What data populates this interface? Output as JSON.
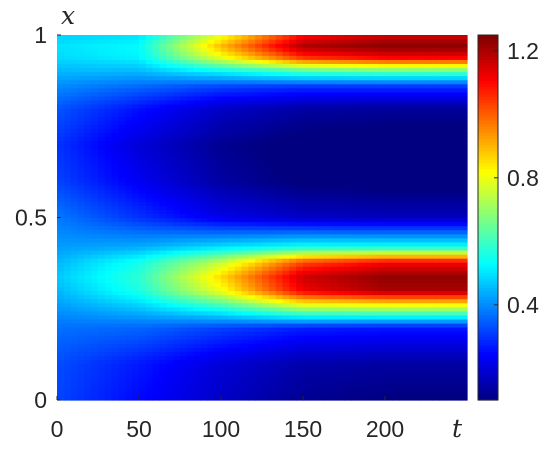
{
  "chart_data": {
    "type": "heatmap",
    "xlabel": "t",
    "ylabel": "x",
    "xlim": [
      0,
      250
    ],
    "ylim": [
      0,
      1
    ],
    "x_ticks": [
      0,
      50,
      100,
      150,
      200
    ],
    "x_tick_labels": [
      "0",
      "50",
      "100",
      "150",
      "200"
    ],
    "y_ticks": [
      0,
      0.5,
      1
    ],
    "y_tick_labels": [
      "0",
      "0.5",
      "1"
    ],
    "colorbar": {
      "range": [
        0.1,
        1.25
      ],
      "ticks": [
        0.4,
        0.8,
        1.2
      ],
      "tick_labels": [
        "0.4",
        "0.8",
        "1.2"
      ],
      "colormap": "jet",
      "placement": "right"
    },
    "grid": false,
    "t_samples": [
      0,
      50,
      100,
      150,
      200,
      250
    ],
    "x_samples": [
      0,
      0.1,
      0.2,
      0.26,
      0.3,
      0.34,
      0.38,
      0.42,
      0.5,
      0.6,
      0.7,
      0.8,
      0.86,
      0.9,
      0.94,
      0.97,
      1.0
    ],
    "z_values": [
      [
        0.32,
        0.25,
        0.18,
        0.12,
        0.1,
        0.1
      ],
      [
        0.33,
        0.27,
        0.2,
        0.15,
        0.14,
        0.14
      ],
      [
        0.37,
        0.36,
        0.32,
        0.28,
        0.27,
        0.27
      ],
      [
        0.42,
        0.48,
        0.6,
        0.78,
        0.8,
        0.8
      ],
      [
        0.45,
        0.56,
        0.8,
        1.12,
        1.2,
        1.2
      ],
      [
        0.47,
        0.58,
        0.86,
        1.16,
        1.23,
        1.23
      ],
      [
        0.45,
        0.55,
        0.75,
        1.02,
        1.1,
        1.1
      ],
      [
        0.42,
        0.44,
        0.5,
        0.55,
        0.55,
        0.55
      ],
      [
        0.38,
        0.3,
        0.22,
        0.18,
        0.17,
        0.17
      ],
      [
        0.32,
        0.23,
        0.14,
        0.09,
        0.08,
        0.08
      ],
      [
        0.3,
        0.2,
        0.12,
        0.08,
        0.07,
        0.07
      ],
      [
        0.34,
        0.26,
        0.18,
        0.14,
        0.13,
        0.13
      ],
      [
        0.4,
        0.36,
        0.32,
        0.3,
        0.3,
        0.3
      ],
      [
        0.45,
        0.45,
        0.52,
        0.6,
        0.62,
        0.62
      ],
      [
        0.49,
        0.52,
        0.8,
        1.06,
        1.12,
        1.12
      ],
      [
        0.5,
        0.53,
        0.9,
        1.2,
        1.24,
        1.24
      ],
      [
        0.48,
        0.5,
        0.8,
        1.1,
        1.16,
        1.16
      ]
    ]
  }
}
